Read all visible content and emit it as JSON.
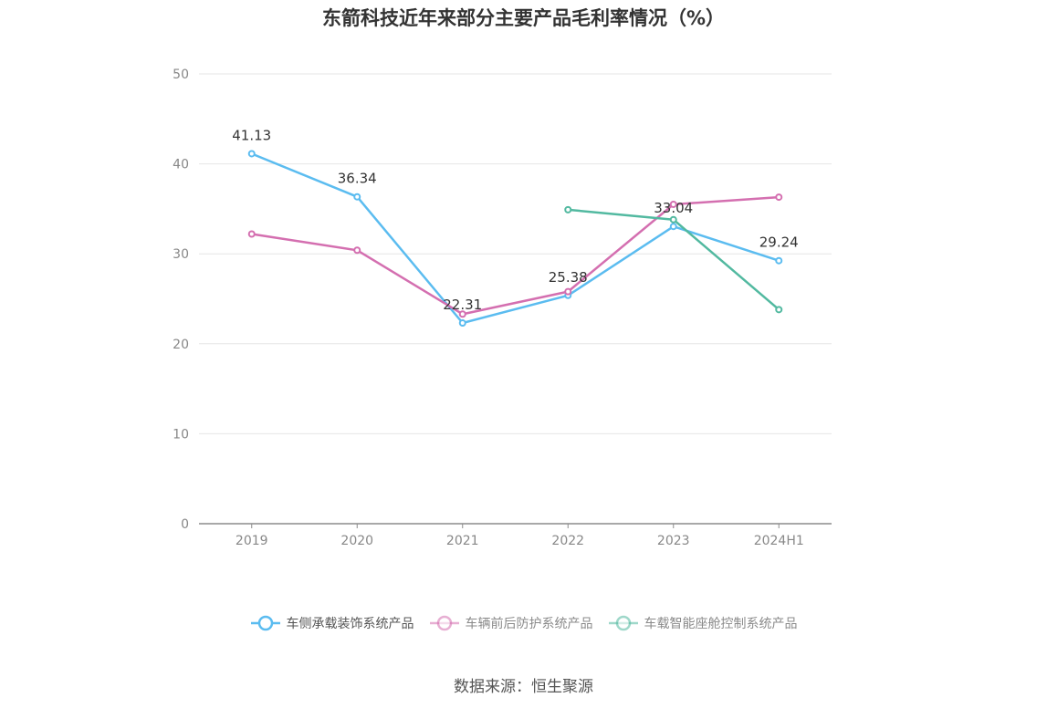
{
  "chart_data": {
    "type": "line",
    "title": "东箭科技近年来部分主要产品毛利率情况（%）",
    "categories": [
      "2019",
      "2020",
      "2021",
      "2022",
      "2023",
      "2024H1"
    ],
    "ylim": [
      0,
      50
    ],
    "yticks": [
      0,
      10,
      20,
      30,
      40,
      50
    ],
    "grid": true,
    "legend_position": "bottom",
    "series": [
      {
        "name": "车侧承载装饰系统产品",
        "color": "#5bbcf0",
        "values": [
          41.13,
          36.34,
          22.31,
          25.38,
          33.04,
          29.24
        ],
        "labels": true
      },
      {
        "name": "车辆前后防护系统产品",
        "color": "#d46fb0",
        "values": [
          32.2,
          30.4,
          23.3,
          25.8,
          35.5,
          36.3
        ],
        "labels": false
      },
      {
        "name": "车载智能座舱控制系统产品",
        "color": "#52b9a0",
        "values": [
          null,
          null,
          null,
          34.9,
          33.8,
          23.8
        ],
        "labels": false
      }
    ]
  },
  "source": "数据来源：恒生聚源"
}
